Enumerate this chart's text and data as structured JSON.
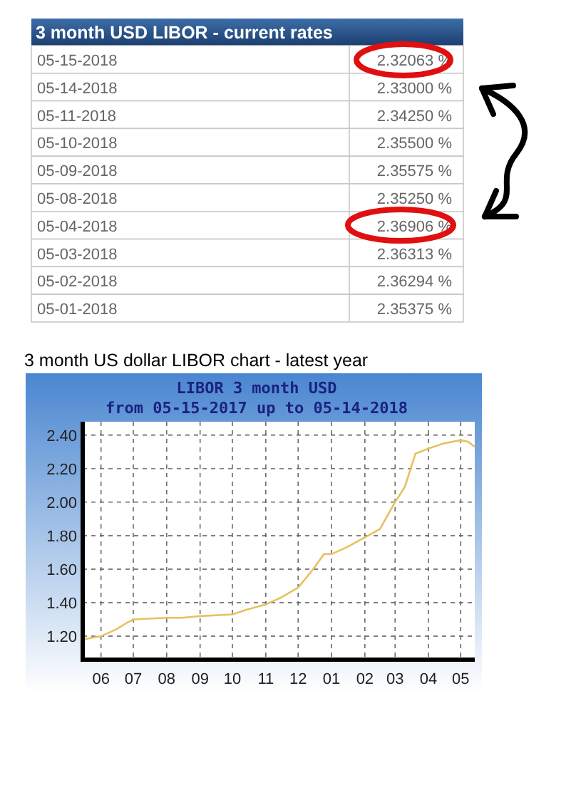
{
  "chart_data": [
    {
      "type": "other",
      "title": "3 month USD LIBOR - current rates",
      "categories": [
        "05-15-2018",
        "05-14-2018",
        "05-11-2018",
        "05-10-2018",
        "05-09-2018",
        "05-08-2018",
        "05-04-2018",
        "05-03-2018",
        "05-02-2018",
        "05-01-2018"
      ],
      "value_labels": [
        "2.32063 %",
        "2.33000 %",
        "2.34250 %",
        "2.35500 %",
        "2.35575 %",
        "2.35250 %",
        "2.36906 %",
        "2.36313 %",
        "2.36294 %",
        "2.35375 %"
      ]
    },
    {
      "type": "line",
      "title": "3 month US dollar LIBOR chart - latest year",
      "subtitle": "LIBOR 3 month USD",
      "annotations": [
        "from 05-15-2017 up to 05-14-2018"
      ],
      "x": [
        "2017-05-15",
        "2017-06-01",
        "2017-06-15",
        "2017-06-25",
        "2017-07-01",
        "2017-08-01",
        "2017-08-15",
        "2017-09-01",
        "2017-10-01",
        "2017-10-15",
        "2017-11-01",
        "2017-11-15",
        "2017-12-01",
        "2017-12-15",
        "2017-12-25",
        "2018-01-01",
        "2018-01-15",
        "2018-02-01",
        "2018-02-15",
        "2018-03-01",
        "2018-03-10",
        "2018-03-20",
        "2018-04-01",
        "2018-04-15",
        "2018-05-01",
        "2018-05-08",
        "2018-05-14"
      ],
      "series": [
        {
          "color": "#e8c060",
          "values": [
            1.18,
            1.2,
            1.24,
            1.28,
            1.3,
            1.31,
            1.31,
            1.32,
            1.33,
            1.36,
            1.39,
            1.43,
            1.49,
            1.6,
            1.69,
            1.69,
            1.73,
            1.79,
            1.84,
            2.0,
            2.09,
            2.29,
            2.32,
            2.35,
            2.37,
            2.36,
            2.33
          ]
        }
      ],
      "xlim": [
        "2017-05-15",
        "2018-05-14"
      ],
      "xticks": [
        {
          "value": "2017-06-01",
          "label": "06"
        },
        {
          "value": "2017-07-01",
          "label": "07"
        },
        {
          "value": "2017-08-01",
          "label": "08"
        },
        {
          "value": "2017-09-01",
          "label": "09"
        },
        {
          "value": "2017-10-01",
          "label": "10"
        },
        {
          "value": "2017-11-01",
          "label": "11"
        },
        {
          "value": "2017-12-01",
          "label": "12"
        },
        {
          "value": "2018-01-01",
          "label": "01"
        },
        {
          "value": "2018-02-01",
          "label": "02"
        },
        {
          "value": "2018-03-01",
          "label": "03"
        },
        {
          "value": "2018-04-01",
          "label": "04"
        },
        {
          "value": "2018-05-01",
          "label": "05"
        }
      ],
      "ylim": [
        1.06,
        2.48
      ],
      "yticks": [
        {
          "value": 1.2,
          "label": "1.20"
        },
        {
          "value": 1.4,
          "label": "1.40"
        },
        {
          "value": 1.6,
          "label": "1.60"
        },
        {
          "value": 1.8,
          "label": "1.80"
        },
        {
          "value": 2.0,
          "label": "2.00"
        },
        {
          "value": 2.2,
          "label": "2.20"
        },
        {
          "value": 2.4,
          "label": "2.40"
        }
      ],
      "grid": true,
      "line_style": "solid",
      "marker": "none"
    }
  ]
}
